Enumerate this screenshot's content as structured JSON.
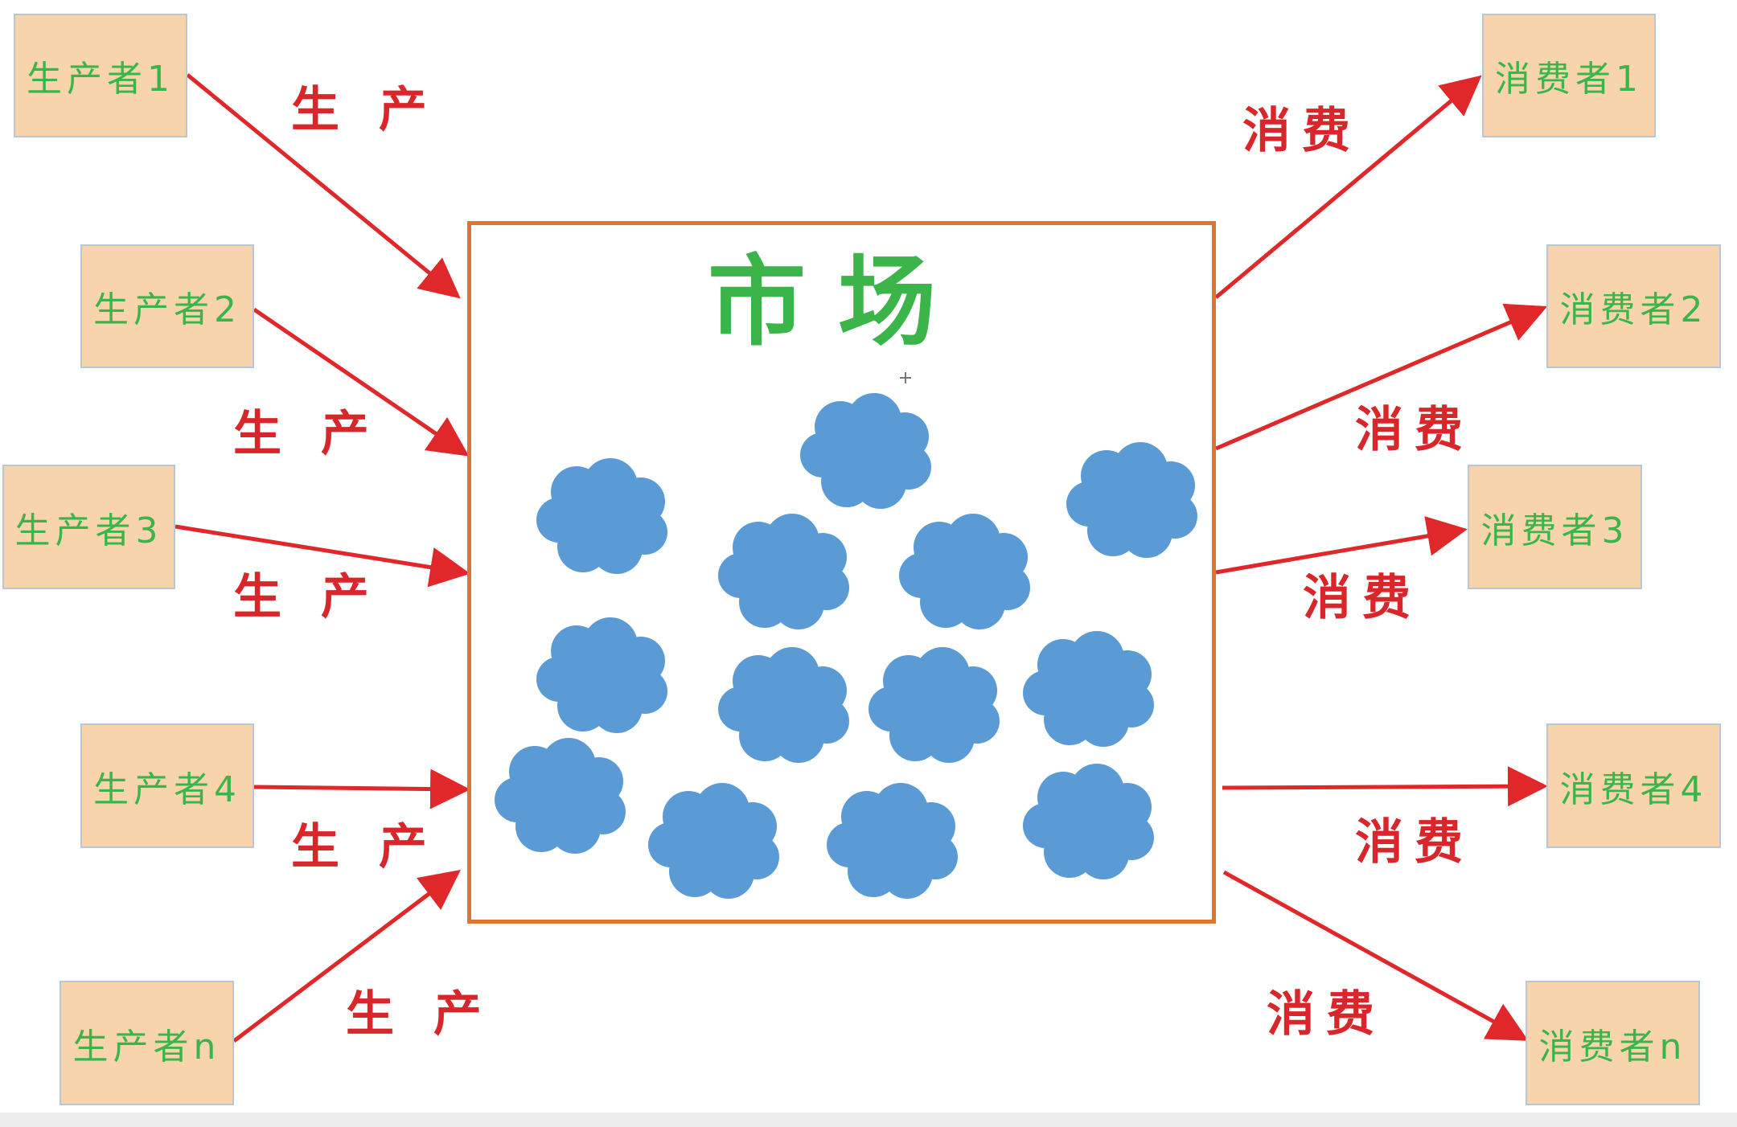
{
  "market": {
    "label": "市场"
  },
  "producers": [
    {
      "label": "生产者1"
    },
    {
      "label": "生产者2"
    },
    {
      "label": "生产者3"
    },
    {
      "label": "生产者4"
    },
    {
      "label": "生产者n"
    }
  ],
  "consumers": [
    {
      "label": "消费者1"
    },
    {
      "label": "消费者2"
    },
    {
      "label": "消费者3"
    },
    {
      "label": "消费者4"
    },
    {
      "label": "消费者n"
    }
  ],
  "produce_label": "生 产",
  "consume_label": "消费",
  "colors": {
    "arrow": "#e0282a",
    "box_fill": "#f7d4ac",
    "box_text": "#3bb44a",
    "market_border": "#e0732f",
    "cloud": "#5b9bd5",
    "label_text": "#d9262a"
  }
}
